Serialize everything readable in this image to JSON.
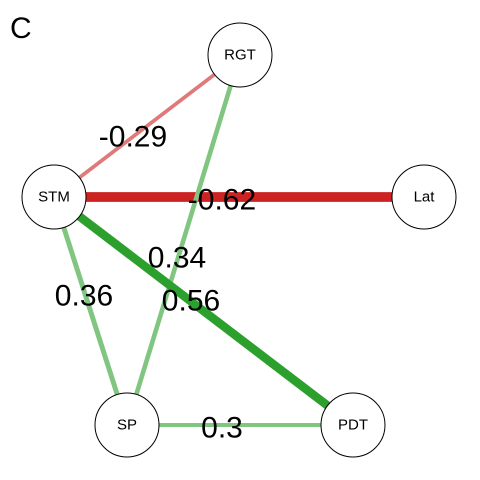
{
  "panel_label": "C",
  "colors": {
    "positive": "#2ca02c",
    "negative": "#cc2222",
    "node_fill": "#ffffff",
    "node_stroke": "#000000"
  },
  "nodes": [
    {
      "id": "RGT",
      "label": "RGT"
    },
    {
      "id": "STM",
      "label": "STM"
    },
    {
      "id": "Lat",
      "label": "Lat"
    },
    {
      "id": "SP",
      "label": "SP"
    },
    {
      "id": "PDT",
      "label": "PDT"
    }
  ],
  "edges": [
    {
      "source": "STM",
      "target": "RGT",
      "weight": -0.29,
      "label": "-0.29"
    },
    {
      "source": "STM",
      "target": "Lat",
      "weight": -0.62,
      "label": "-0.62"
    },
    {
      "source": "RGT",
      "target": "SP",
      "weight": 0.34,
      "label": "0.34"
    },
    {
      "source": "STM",
      "target": "PDT",
      "weight": 0.56,
      "label": "0.56"
    },
    {
      "source": "STM",
      "target": "SP",
      "weight": 0.36,
      "label": "0.36"
    },
    {
      "source": "SP",
      "target": "PDT",
      "weight": 0.3,
      "label": "0.3"
    }
  ]
}
